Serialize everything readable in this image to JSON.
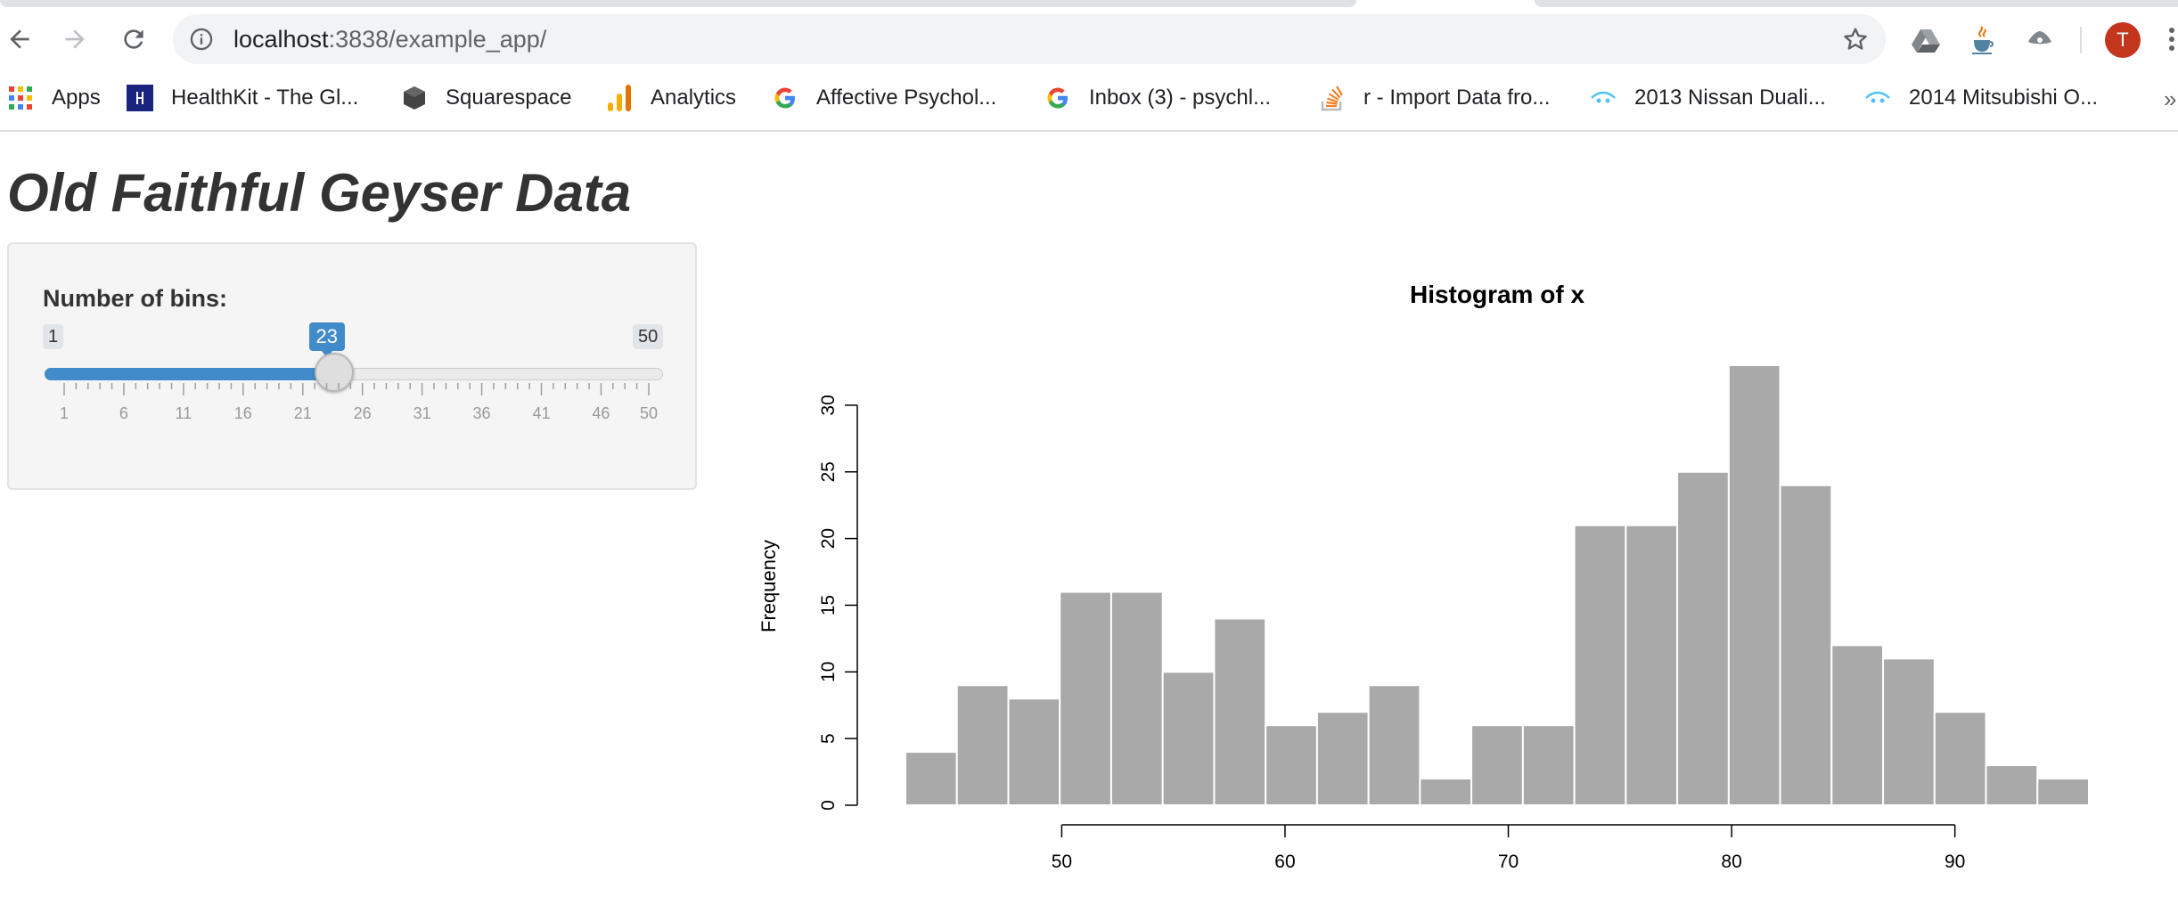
{
  "browser": {
    "url_host": "localhost",
    "url_rest": ":3838/example_app/",
    "avatar_letter": "T"
  },
  "bookmarks": [
    {
      "label": "Apps",
      "icon": "apps-grid-icon"
    },
    {
      "label": "HealthKit - The Gl...",
      "icon": "healthkit-icon"
    },
    {
      "label": "Squarespace",
      "icon": "squarespace-cube-icon"
    },
    {
      "label": "Analytics",
      "icon": "analytics-bars-icon"
    },
    {
      "label": "Affective Psychol...",
      "icon": "google-g-icon"
    },
    {
      "label": "Inbox (3) - psychl...",
      "icon": "google-g-icon"
    },
    {
      "label": "r - Import Data fro...",
      "icon": "stackoverflow-icon"
    },
    {
      "label": "2013 Nissan Duali...",
      "icon": "car-site-icon"
    },
    {
      "label": "2014 Mitsubishi O...",
      "icon": "car-site-icon"
    }
  ],
  "page": {
    "title": "Old Faithful Geyser Data"
  },
  "slider": {
    "label": "Number of bins:",
    "min": 1,
    "max": 50,
    "value": 23,
    "min_label": "1",
    "max_label": "50",
    "value_label": "23",
    "tick_labels": [
      "1",
      "6",
      "11",
      "16",
      "21",
      "26",
      "31",
      "36",
      "41",
      "46",
      "50"
    ],
    "accent_color": "#428bca"
  },
  "chart_data": {
    "type": "bar",
    "title": "Histogram of x",
    "xlabel": "",
    "ylabel": "Frequency",
    "bin_edges": [
      43.0,
      45.304,
      47.609,
      49.913,
      52.217,
      54.522,
      56.826,
      59.13,
      61.435,
      63.739,
      66.043,
      68.348,
      70.652,
      72.957,
      75.261,
      77.565,
      79.87,
      82.174,
      84.478,
      86.783,
      89.087,
      91.391,
      93.696,
      96.0
    ],
    "values": [
      4,
      9,
      8,
      16,
      16,
      10,
      14,
      6,
      7,
      9,
      2,
      6,
      6,
      21,
      21,
      25,
      33,
      24,
      12,
      11,
      7,
      3,
      2
    ],
    "x_ticks": [
      50,
      60,
      70,
      80,
      90
    ],
    "y_ticks": [
      0,
      5,
      10,
      15,
      20,
      25,
      30
    ],
    "bar_color": "#a9a9a9",
    "bar_border": "#ffffff"
  }
}
